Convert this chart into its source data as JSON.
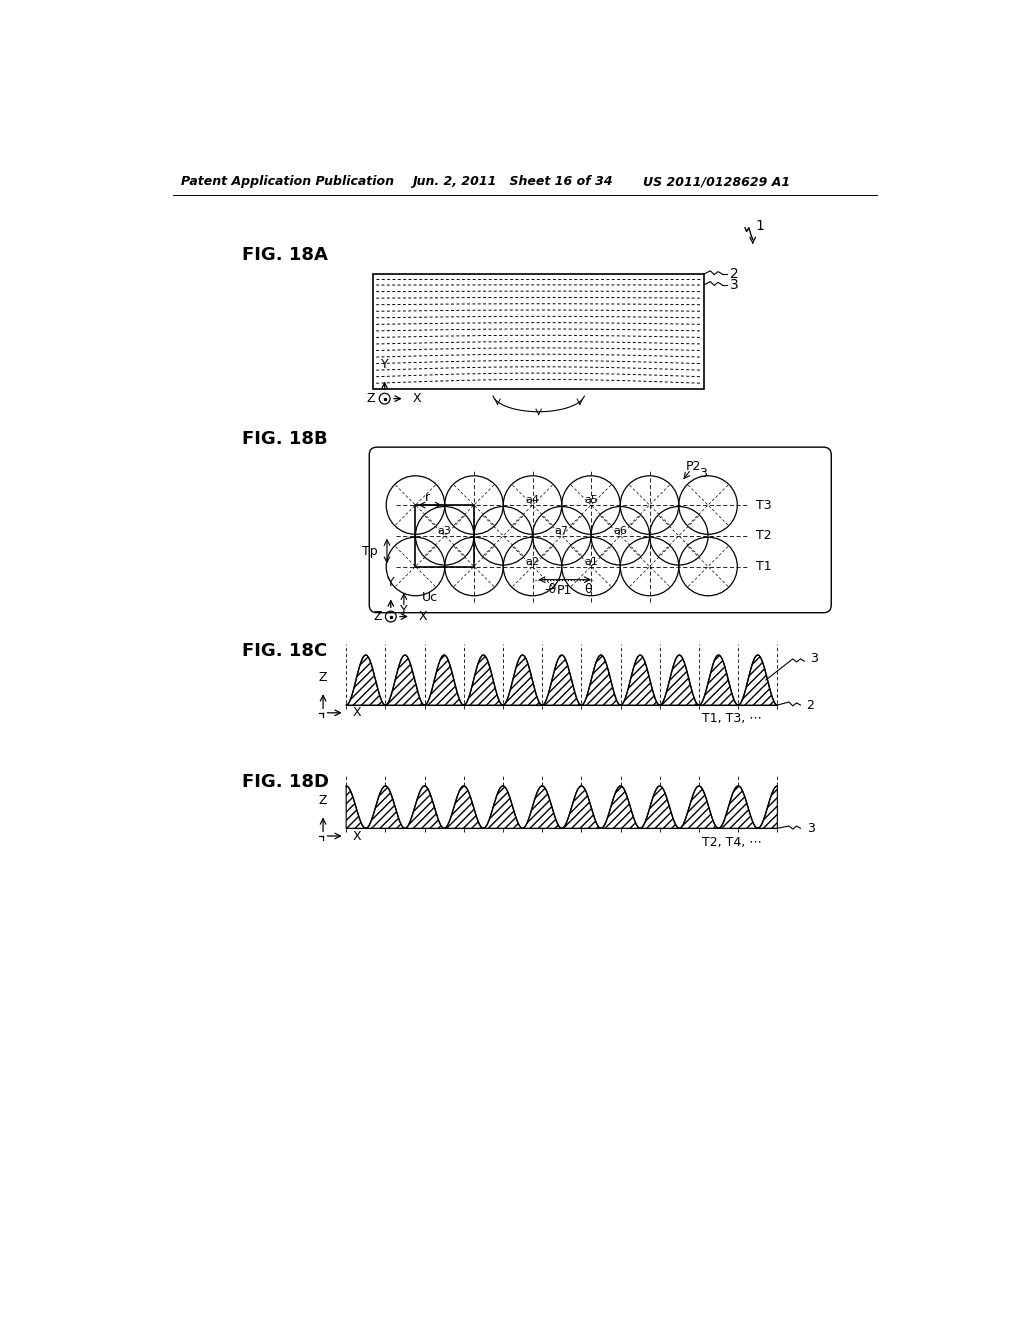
{
  "bg_color": "#ffffff",
  "text_color": "#000000",
  "header_left": "Patent Application Publication",
  "header_center": "Jun. 2, 2011   Sheet 16 of 34",
  "header_right": "US 2011/0128629 A1",
  "fig18a_label": "FIG. 18A",
  "fig18b_label": "FIG. 18B",
  "fig18c_label": "FIG. 18C",
  "fig18d_label": "FIG. 18D"
}
